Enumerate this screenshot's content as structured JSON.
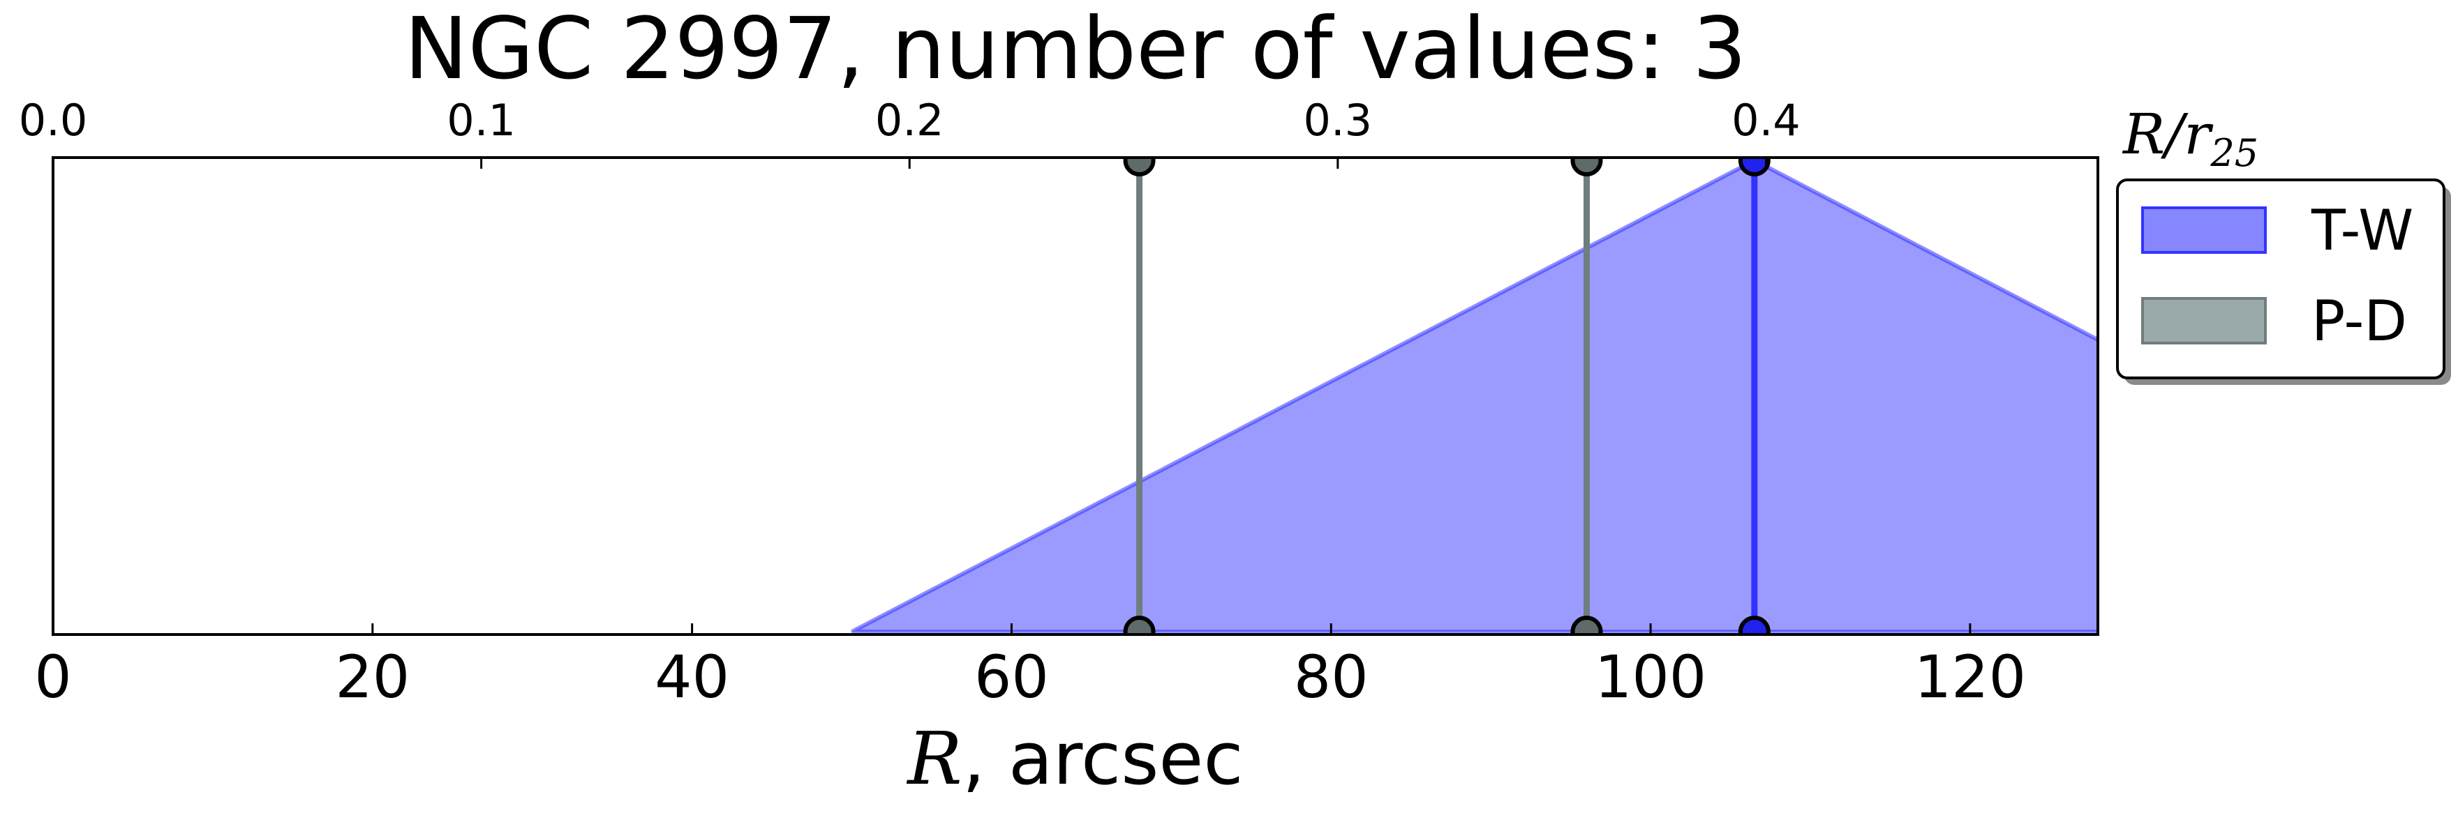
{
  "chart_data": {
    "type": "area",
    "title": "NGC 2997, number of values: 3",
    "xlabel": {
      "var": "R",
      "rest": ", arcsec"
    },
    "x2label": {
      "var": "R/r",
      "sub": "25"
    },
    "xlim": [
      0,
      128
    ],
    "x_ticks": [
      "0",
      "20",
      "40",
      "60",
      "80",
      "100",
      "120"
    ],
    "x_tick_values": [
      0,
      20,
      40,
      60,
      80,
      100,
      120
    ],
    "x2_ticks": [
      "0.0",
      "0.1",
      "0.2",
      "0.3",
      "0.4"
    ],
    "x2_tick_values": [
      0.0,
      0.1,
      0.2,
      0.3,
      0.4
    ],
    "x2_max": 0.4775,
    "series": [
      {
        "name": "T-W",
        "color": "#7f7fff",
        "edge": "#3333ff",
        "shape": "triangle",
        "triangle_x": [
          50,
          106.5,
          163
        ],
        "markers_x": [
          106.5
        ]
      },
      {
        "name": "P-D",
        "color": "#95a5a6",
        "edge": "#707d7e",
        "shape": "lines",
        "markers_x": [
          68,
          96
        ]
      }
    ],
    "legend": {
      "placement": "outside right",
      "entries": [
        "T-W",
        "P-D"
      ]
    }
  }
}
